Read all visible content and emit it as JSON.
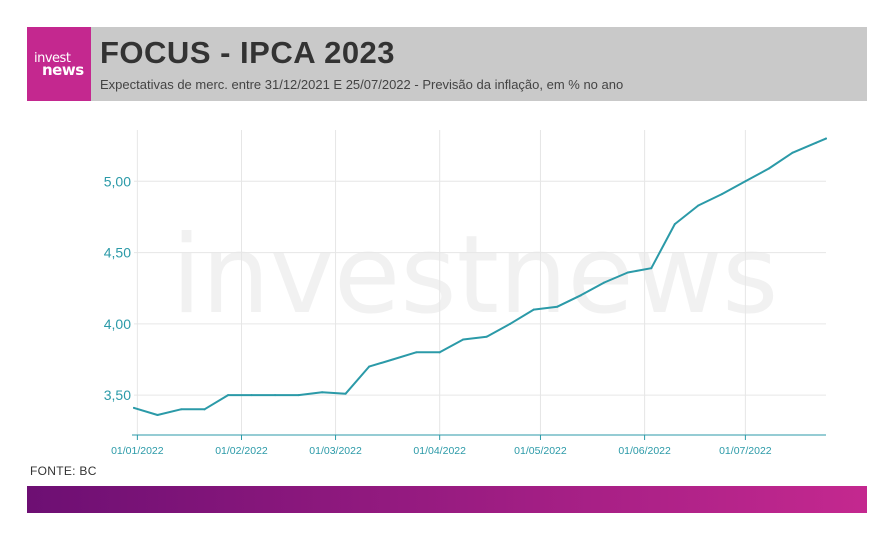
{
  "header": {
    "logo_line1": "invest",
    "logo_line2": "news",
    "title": "FOCUS - IPCA 2023",
    "subtitle": "Expectativas de merc. entre 31/12/2021 E 25/07/2022 - Previsão da inflação, em % no ano"
  },
  "source": "FONTE: BC",
  "colors": {
    "line": "#2b9aa8",
    "brand_magenta": "#c4288f",
    "brand_purple": "#6d0f73",
    "header_bg": "#c9c9c9",
    "grid": "#e6e6e6"
  },
  "chart_data": {
    "type": "line",
    "title": "FOCUS - IPCA 2023",
    "subtitle": "Expectativas de merc. entre 31/12/2021 E 25/07/2022 - Previsão da inflação, em % no ano",
    "x_range": [
      "2021-12-31",
      "2022-07-25"
    ],
    "ylim": [
      3.22,
      5.36
    ],
    "y_ticks": [
      3.5,
      4.0,
      4.5,
      5.0
    ],
    "y_tick_labels": [
      "3,50",
      "4,00",
      "4,50",
      "5,00"
    ],
    "x_ticks": [
      "2022-01-01",
      "2022-02-01",
      "2022-03-01",
      "2022-04-01",
      "2022-05-01",
      "2022-06-01",
      "2022-07-01"
    ],
    "x_tick_labels": [
      "01/01/2022",
      "01/02/2022",
      "01/03/2022",
      "01/04/2022",
      "01/05/2022",
      "01/06/2022",
      "01/07/2022"
    ],
    "grid": true,
    "watermark": "investnews",
    "series": [
      {
        "x": [
          "2021-12-31",
          "2022-01-07",
          "2022-01-14",
          "2022-01-21",
          "2022-01-28",
          "2022-02-04",
          "2022-02-11",
          "2022-02-18",
          "2022-02-25",
          "2022-03-04",
          "2022-03-11",
          "2022-03-18",
          "2022-03-25",
          "2022-04-01",
          "2022-04-08",
          "2022-04-15",
          "2022-04-22",
          "2022-04-29",
          "2022-05-06",
          "2022-05-13",
          "2022-05-20",
          "2022-05-27",
          "2022-06-03",
          "2022-06-10",
          "2022-06-17",
          "2022-06-24",
          "2022-07-01",
          "2022-07-08",
          "2022-07-15",
          "2022-07-22",
          "2022-07-25"
        ],
        "y": [
          3.41,
          3.36,
          3.4,
          3.4,
          3.5,
          3.5,
          3.5,
          3.5,
          3.52,
          3.51,
          3.7,
          3.75,
          3.8,
          3.8,
          3.89,
          3.91,
          4.0,
          4.1,
          4.12,
          4.2,
          4.29,
          4.36,
          4.39,
          4.7,
          4.83,
          4.91,
          5.0,
          5.09,
          5.2,
          5.27,
          5.3
        ]
      }
    ]
  }
}
